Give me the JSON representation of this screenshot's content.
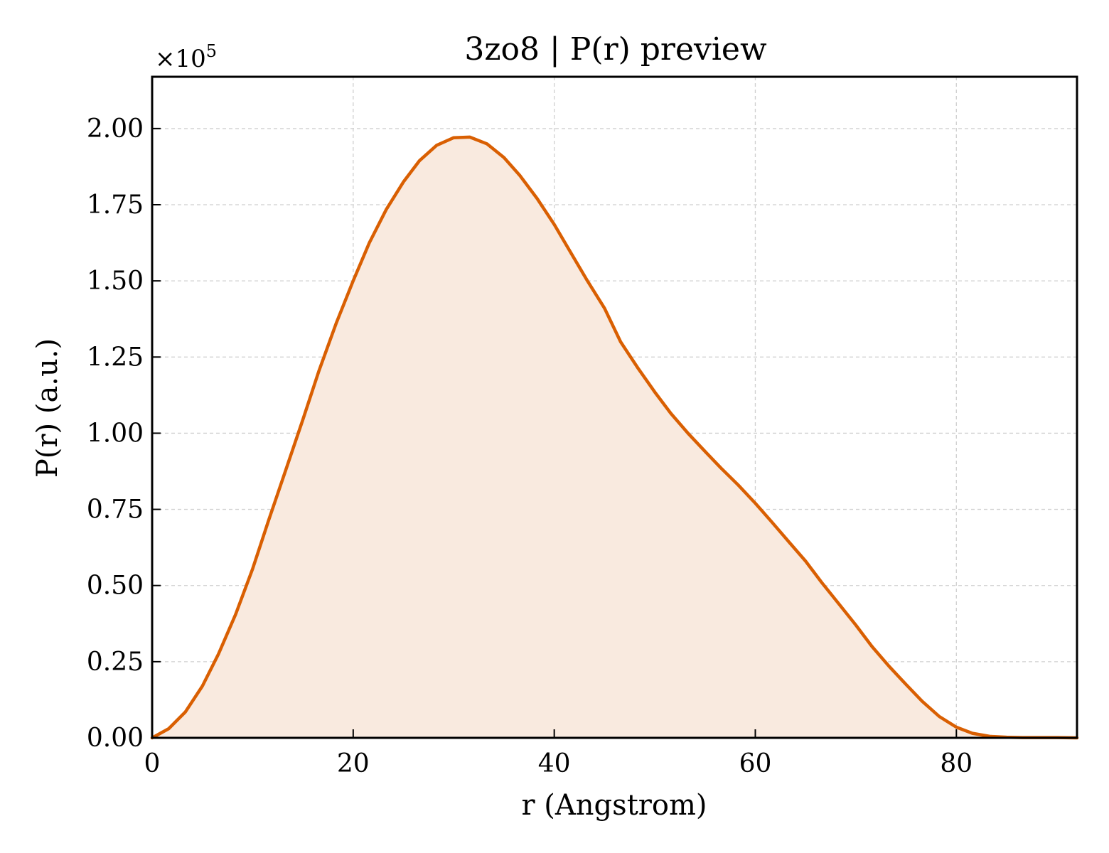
{
  "chart_data": {
    "type": "area",
    "title": "3zo8 | P(r) preview",
    "xlabel": "r (Angstrom)",
    "ylabel": "P(r) (a.u.)",
    "y_multiplier_label": "×10",
    "y_multiplier_exponent": "5",
    "xlim": [
      0,
      92
    ],
    "ylim": [
      0,
      2.17
    ],
    "xticks": [
      0,
      20,
      40,
      60,
      80
    ],
    "yticks": [
      0.0,
      0.25,
      0.5,
      0.75,
      1.0,
      1.25,
      1.5,
      1.75,
      2.0
    ],
    "xtick_labels": [
      "0",
      "20",
      "40",
      "60",
      "80"
    ],
    "ytick_labels": [
      "0.00",
      "0.25",
      "0.50",
      "0.75",
      "1.00",
      "1.25",
      "1.50",
      "1.75",
      "2.00"
    ],
    "grid": true,
    "colors": {
      "line": "#d95f02",
      "fill": "#f9eadf"
    },
    "series": [
      {
        "x": [
          0,
          1.65,
          3.3,
          5.0,
          6.6,
          8.3,
          10.0,
          11.6,
          13.3,
          15.0,
          16.6,
          18.3,
          20.0,
          21.6,
          23.3,
          25.0,
          26.6,
          28.3,
          30.0,
          31.6,
          33.3,
          35.0,
          36.6,
          38.3,
          40.0,
          41.6,
          43.3,
          45.0,
          46.6,
          48.3,
          50.0,
          51.6,
          53.3,
          55.0,
          56.6,
          58.3,
          60.0,
          61.6,
          63.3,
          65.0,
          66.6,
          68.3,
          70.0,
          71.6,
          73.3,
          75.0,
          76.6,
          78.3,
          80.0,
          81.6,
          83.3,
          85.0,
          86.6,
          88.3,
          90.0,
          92.0
        ],
        "values": [
          0.0,
          0.03,
          0.085,
          0.17,
          0.275,
          0.405,
          0.555,
          0.715,
          0.88,
          1.045,
          1.205,
          1.36,
          1.5,
          1.625,
          1.735,
          1.825,
          1.895,
          1.945,
          1.97,
          1.972,
          1.95,
          1.905,
          1.845,
          1.77,
          1.685,
          1.595,
          1.5,
          1.41,
          1.3,
          1.215,
          1.135,
          1.065,
          1.0,
          0.94,
          0.885,
          0.83,
          0.77,
          0.71,
          0.645,
          0.58,
          0.51,
          0.44,
          0.37,
          0.3,
          0.235,
          0.175,
          0.12,
          0.07,
          0.035,
          0.015,
          0.005,
          0.002,
          0.001,
          0.001,
          0.001,
          0.0
        ]
      }
    ]
  }
}
